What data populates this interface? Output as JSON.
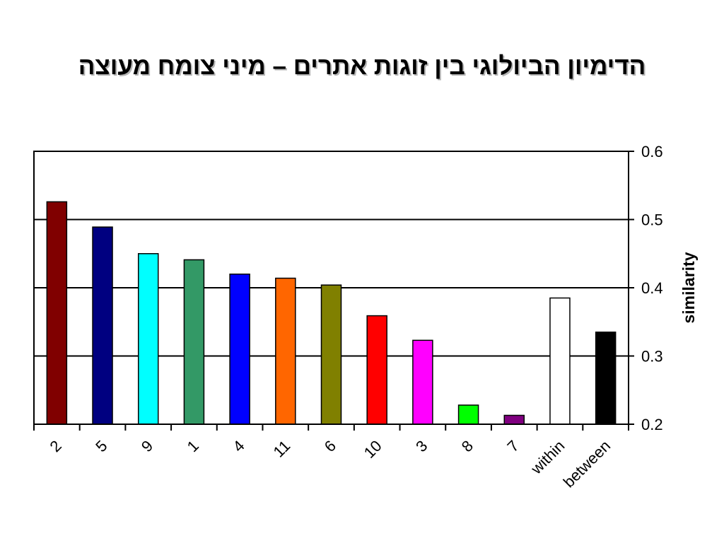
{
  "chart_data": {
    "type": "bar",
    "title": "הדימיון הביולוגי בין זוגות אתרים – מיני צומח מעוצה",
    "xlabel": "",
    "ylabel": "similarity",
    "ylim": [
      0.2,
      0.6
    ],
    "yticks": [
      "0.2",
      "0.3",
      "0.4",
      "0.5",
      "0.6"
    ],
    "yaxis_position": "right",
    "grid": true,
    "legend": "none",
    "categories": [
      "2",
      "5",
      "9",
      "1",
      "4",
      "11",
      "6",
      "10",
      "3",
      "8",
      "7",
      "within",
      "between"
    ],
    "values": [
      0.526,
      0.489,
      0.45,
      0.441,
      0.42,
      0.414,
      0.404,
      0.359,
      0.323,
      0.228,
      0.213,
      0.385,
      0.335
    ],
    "colors": [
      "#800000",
      "#000080",
      "#00ffff",
      "#339966",
      "#0000ff",
      "#ff6600",
      "#808000",
      "#ff0000",
      "#ff00ff",
      "#00ff00",
      "#800080",
      "#ffffff",
      "#000000"
    ]
  }
}
